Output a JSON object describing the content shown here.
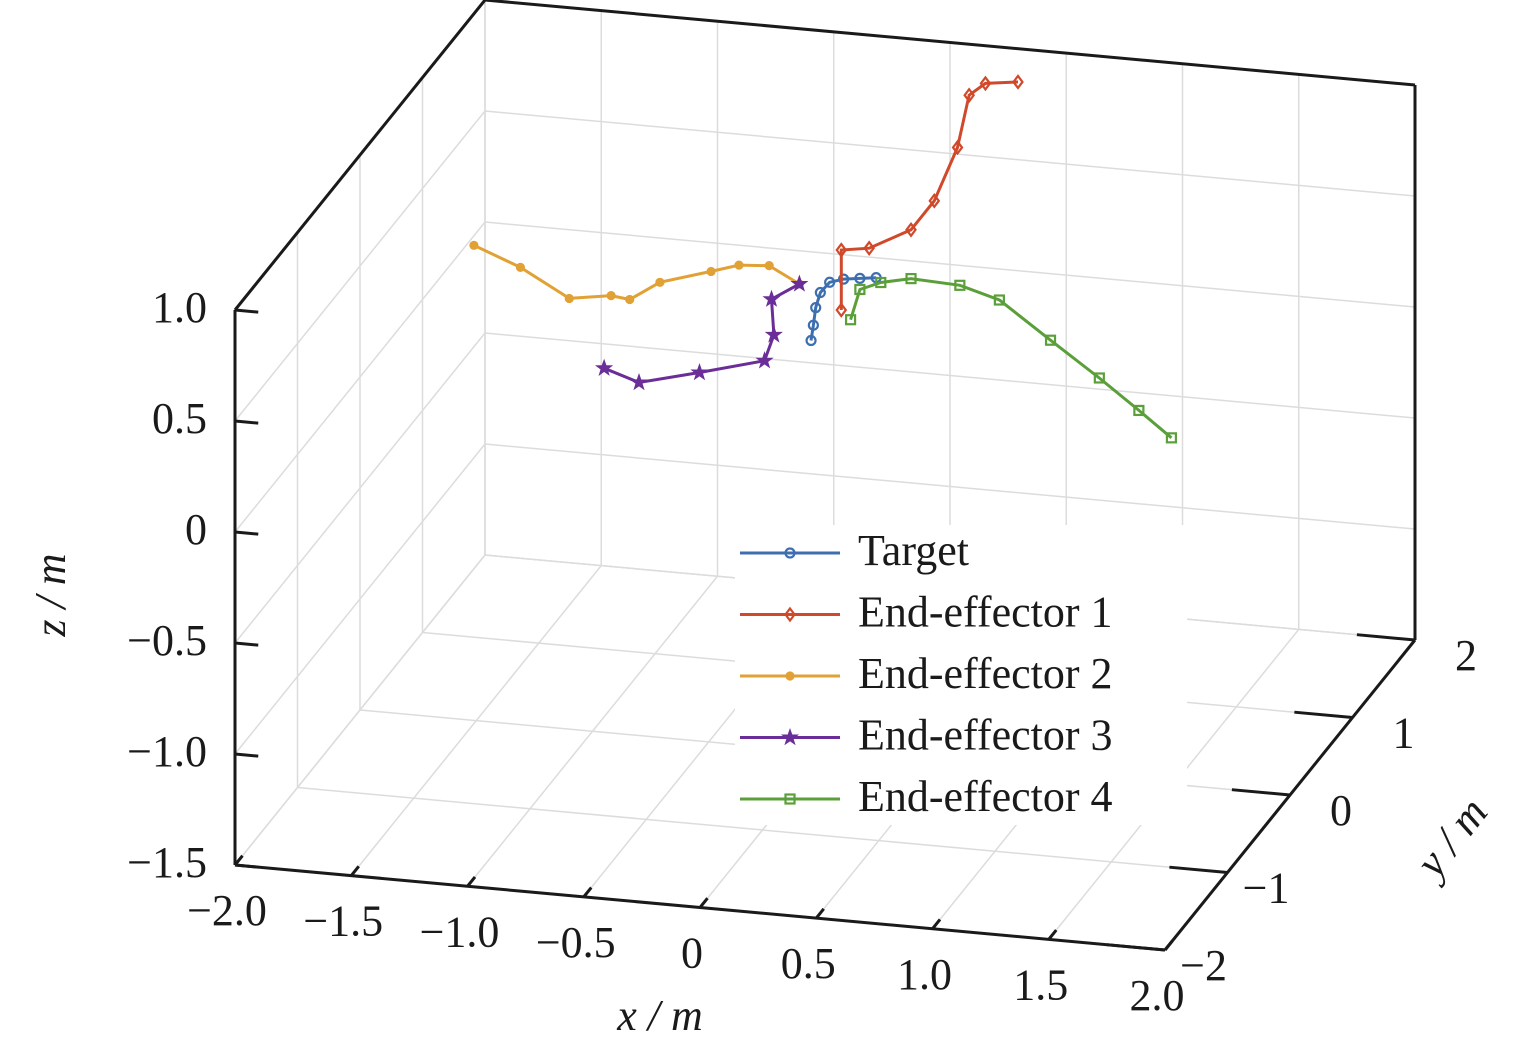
{
  "chart_data": {
    "type": "line3d",
    "xlabel": "x / m",
    "ylabel": "y / m",
    "zlabel": "z / m",
    "xlim": [
      -2,
      2
    ],
    "ylim": [
      -2,
      2
    ],
    "zlim": [
      -1.5,
      1.0
    ],
    "xticks": [
      {
        "value": -2,
        "label": "−2.0"
      },
      {
        "value": -1.5,
        "label": "−1.5"
      },
      {
        "value": -1,
        "label": "−1.0"
      },
      {
        "value": -0.5,
        "label": "−0.5"
      },
      0,
      0.5,
      {
        "value": 1,
        "label": "1.0"
      },
      1.5,
      {
        "value": 2,
        "label": "2.0"
      }
    ],
    "yticks": [
      {
        "value": -2,
        "label": "−2"
      },
      {
        "value": -1,
        "label": "−1"
      },
      0,
      1,
      2
    ],
    "zticks": [
      {
        "value": -1.5,
        "label": "−1.5"
      },
      {
        "value": -1,
        "label": "−1.0"
      },
      {
        "value": -0.5,
        "label": "−0.5"
      },
      0,
      0.5,
      {
        "value": 1,
        "label": "1.0"
      }
    ],
    "grid": true,
    "series": [
      {
        "name": "Target",
        "color": "#3d6fb0",
        "marker": "circle",
        "x": [
          -0.06,
          -0.05,
          -0.04,
          -0.02,
          0.02,
          0.08,
          0.15,
          0.22
        ],
        "y": [
          0,
          0,
          0,
          0,
          0,
          0,
          0,
          0
        ],
        "z": [
          0.35,
          0.42,
          0.5,
          0.57,
          0.62,
          0.64,
          0.65,
          0.66
        ]
      },
      {
        "name": "End-effector 1",
        "color": "#d0492a",
        "marker": "diamond",
        "x": [
          0.07,
          0.07,
          0.19,
          0.37,
          0.47,
          0.57,
          0.62,
          0.69,
          0.83
        ],
        "y": [
          0,
          0,
          0,
          0,
          0,
          0,
          0,
          0,
          0
        ],
        "z": [
          0.5,
          0.77,
          0.79,
          0.89,
          1.03,
          1.28,
          1.52,
          1.58,
          1.6
        ]
      },
      {
        "name": "End-effector 2",
        "color": "#e1a134",
        "marker": "dot",
        "x": [
          -1.51,
          -1.31,
          -1.1,
          -0.92,
          -0.84,
          -0.71,
          -0.49,
          -0.37,
          -0.24,
          -0.11
        ],
        "y": [
          0,
          0,
          0,
          0,
          0,
          0,
          0,
          0,
          0,
          0
        ],
        "z": [
          0.64,
          0.56,
          0.44,
          0.47,
          0.46,
          0.55,
          0.62,
          0.66,
          0.67,
          0.6
        ]
      },
      {
        "name": "End-effector 3",
        "color": "#6b2e98",
        "marker": "star",
        "x": [
          -0.95,
          -0.8,
          -0.54,
          -0.26,
          -0.22,
          -0.23,
          -0.11
        ],
        "y": [
          0,
          0,
          0,
          0,
          0,
          0,
          0
        ],
        "z": [
          0.14,
          0.09,
          0.16,
          0.24,
          0.36,
          0.52,
          0.6
        ]
      },
      {
        "name": "End-effector 4",
        "color": "#5b9f3a",
        "marker": "square",
        "x": [
          0.11,
          0.15,
          0.24,
          0.37,
          0.58,
          0.75,
          0.97,
          1.18,
          1.35,
          1.49
        ],
        "y": [
          0,
          0,
          0,
          0,
          0,
          0,
          0,
          0,
          0,
          0
        ],
        "z": [
          0.46,
          0.6,
          0.64,
          0.67,
          0.66,
          0.61,
          0.45,
          0.3,
          0.17,
          0.06
        ]
      }
    ]
  }
}
